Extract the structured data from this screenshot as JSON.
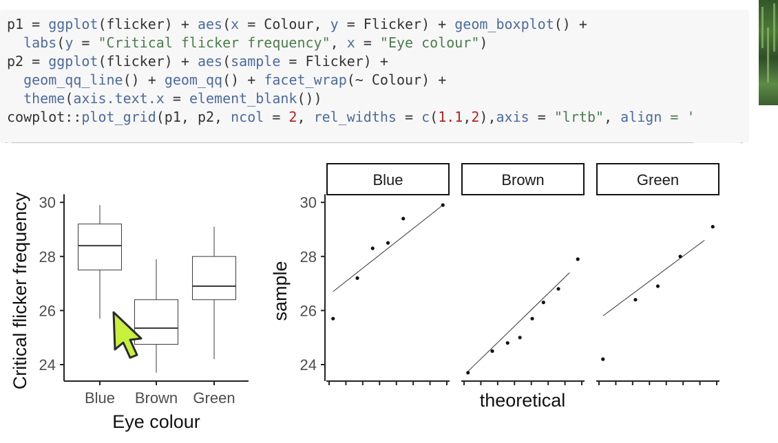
{
  "code": {
    "lines": [
      [
        {
          "t": "p1 = ",
          "c": "id"
        },
        {
          "t": "ggplot",
          "c": "fn"
        },
        {
          "t": "(flicker) + ",
          "c": "id"
        },
        {
          "t": "aes",
          "c": "fn"
        },
        {
          "t": "(",
          "c": "id"
        },
        {
          "t": "x",
          "c": "fn"
        },
        {
          "t": " = Colour, ",
          "c": "id"
        },
        {
          "t": "y",
          "c": "fn"
        },
        {
          "t": " = Flicker) + ",
          "c": "id"
        },
        {
          "t": "geom_boxplot",
          "c": "fn"
        },
        {
          "t": "() +",
          "c": "id"
        }
      ],
      [
        {
          "t": "  ",
          "c": "id"
        },
        {
          "t": "labs",
          "c": "fn"
        },
        {
          "t": "(",
          "c": "id"
        },
        {
          "t": "y",
          "c": "fn"
        },
        {
          "t": " = ",
          "c": "id"
        },
        {
          "t": "\"Critical flicker frequency\"",
          "c": "str"
        },
        {
          "t": ", ",
          "c": "id"
        },
        {
          "t": "x",
          "c": "fn"
        },
        {
          "t": " = ",
          "c": "id"
        },
        {
          "t": "\"Eye colour\"",
          "c": "str"
        },
        {
          "t": ")",
          "c": "id"
        }
      ],
      [
        {
          "t": "p2 = ",
          "c": "id"
        },
        {
          "t": "ggplot",
          "c": "fn"
        },
        {
          "t": "(flicker) + ",
          "c": "id"
        },
        {
          "t": "aes",
          "c": "fn"
        },
        {
          "t": "(",
          "c": "id"
        },
        {
          "t": "sample",
          "c": "fn"
        },
        {
          "t": " = Flicker) +",
          "c": "id"
        }
      ],
      [
        {
          "t": "  ",
          "c": "id"
        },
        {
          "t": "geom_qq_line",
          "c": "fn"
        },
        {
          "t": "() + ",
          "c": "id"
        },
        {
          "t": "geom_qq",
          "c": "fn"
        },
        {
          "t": "() + ",
          "c": "id"
        },
        {
          "t": "facet_wrap",
          "c": "fn"
        },
        {
          "t": "(~ Colour) +",
          "c": "id"
        }
      ],
      [
        {
          "t": "  ",
          "c": "id"
        },
        {
          "t": "theme",
          "c": "fn"
        },
        {
          "t": "(",
          "c": "id"
        },
        {
          "t": "axis.text.x",
          "c": "fn"
        },
        {
          "t": " = ",
          "c": "id"
        },
        {
          "t": "element_blank",
          "c": "fn"
        },
        {
          "t": "())",
          "c": "id"
        }
      ],
      [
        {
          "t": "cowplot::",
          "c": "id"
        },
        {
          "t": "plot_grid",
          "c": "fn"
        },
        {
          "t": "(p1, p2, ",
          "c": "id"
        },
        {
          "t": "ncol",
          "c": "fn"
        },
        {
          "t": " = ",
          "c": "id"
        },
        {
          "t": "2",
          "c": "num"
        },
        {
          "t": ", ",
          "c": "id"
        },
        {
          "t": "rel_widths",
          "c": "fn"
        },
        {
          "t": " = ",
          "c": "id"
        },
        {
          "t": "c",
          "c": "fn"
        },
        {
          "t": "(",
          "c": "id"
        },
        {
          "t": "1.1",
          "c": "num"
        },
        {
          "t": ",",
          "c": "id"
        },
        {
          "t": "2",
          "c": "num"
        },
        {
          "t": "),",
          "c": "id"
        },
        {
          "t": "axis",
          "c": "fn"
        },
        {
          "t": " = ",
          "c": "id"
        },
        {
          "t": "\"lrtb\"",
          "c": "str"
        },
        {
          "t": ", ",
          "c": "id"
        },
        {
          "t": "align",
          "c": "fn"
        },
        {
          "t": " = '",
          "c": "str"
        }
      ]
    ],
    "scroll_left_arrow": "◀",
    "scroll_right_arrow": "▶"
  },
  "colors": {
    "code_bg": "#f7f7f7",
    "fn": "#4d6b9e",
    "string": "#4d7b4d",
    "number": "#b22222",
    "cursor_fill": "#c8f03c"
  },
  "chart_data": [
    {
      "type": "boxplot",
      "xlabel": "Eye colour",
      "ylabel": "Critical flicker frequency",
      "categories": [
        "Blue",
        "Brown",
        "Green"
      ],
      "ylim": [
        23.4,
        30.3
      ],
      "yticks": [
        24,
        26,
        28,
        30
      ],
      "boxes": [
        {
          "category": "Blue",
          "min": 25.7,
          "q1": 27.5,
          "median": 28.4,
          "q3": 29.2,
          "max": 29.9
        },
        {
          "category": "Brown",
          "min": 23.7,
          "q1": 24.75,
          "median": 25.35,
          "q3": 26.4,
          "max": 27.9
        },
        {
          "category": "Green",
          "min": 24.2,
          "q1": 26.4,
          "median": 26.9,
          "q3": 28.0,
          "max": 29.1
        }
      ]
    },
    {
      "type": "scatter",
      "subtype": "qq-facets",
      "xlabel": "theoretical",
      "ylabel": "sample",
      "yticks": [
        24,
        26,
        28,
        30
      ],
      "ylim": [
        23.4,
        30.3
      ],
      "xlim": [
        -1.65,
        1.65
      ],
      "facets": [
        {
          "name": "Blue",
          "points": [
            [
              -1.47,
              25.7
            ],
            [
              -0.82,
              27.2
            ],
            [
              -0.41,
              28.3
            ],
            [
              0.0,
              28.5
            ],
            [
              0.41,
              29.4
            ],
            [
              1.47,
              29.9
            ]
          ],
          "line": [
            [
              -1.47,
              26.7
            ],
            [
              1.47,
              29.9
            ]
          ]
        },
        {
          "name": "Brown",
          "points": [
            [
              -1.47,
              23.7
            ],
            [
              -0.82,
              24.5
            ],
            [
              -0.41,
              24.8
            ],
            [
              -0.08,
              25.0
            ],
            [
              0.25,
              25.7
            ],
            [
              0.55,
              26.3
            ],
            [
              0.95,
              26.8
            ],
            [
              1.47,
              27.9
            ]
          ],
          "line": [
            [
              -1.47,
              23.75
            ],
            [
              1.25,
              27.4
            ]
          ]
        },
        {
          "name": "Green",
          "points": [
            [
              -1.47,
              24.2
            ],
            [
              -0.6,
              26.4
            ],
            [
              0.0,
              26.9
            ],
            [
              0.6,
              28.0
            ],
            [
              1.47,
              29.1
            ]
          ],
          "line": [
            [
              -1.47,
              25.8
            ],
            [
              1.25,
              28.6
            ]
          ]
        }
      ]
    }
  ]
}
